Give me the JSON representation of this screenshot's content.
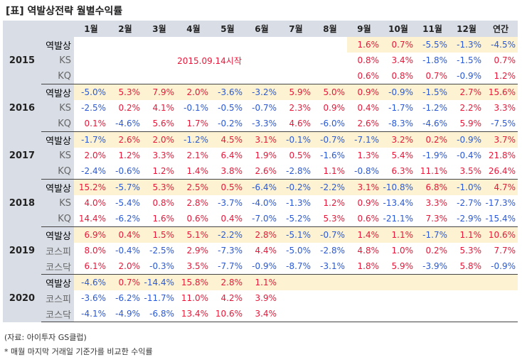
{
  "title": "[표] 역발상전략 월별수익률",
  "months": [
    "1월",
    "2월",
    "3월",
    "4월",
    "5월",
    "6월",
    "7월",
    "8월",
    "9월",
    "10월",
    "11월",
    "12월",
    "연간"
  ],
  "years": [
    {
      "year": "2015",
      "note": "2015.09.14시작",
      "rows": [
        {
          "label": "역발상",
          "values": [
            "",
            "",
            "",
            "",
            "",
            "",
            "",
            "",
            "1.6%",
            "0.7%",
            "-5.5%",
            "-1.3%",
            "-4.5%"
          ]
        },
        {
          "label": "KS",
          "values": [
            "",
            "",
            "",
            "",
            "",
            "",
            "",
            "",
            "0.8%",
            "3.4%",
            "-1.8%",
            "-1.5%",
            "0.7%"
          ]
        },
        {
          "label": "KQ",
          "values": [
            "",
            "",
            "",
            "",
            "",
            "",
            "",
            "",
            "0.6%",
            "0.8%",
            "0.7%",
            "-0.9%",
            "1.2%"
          ]
        }
      ]
    },
    {
      "year": "2016",
      "rows": [
        {
          "label": "역발상",
          "values": [
            "-5.0%",
            "5.3%",
            "7.9%",
            "2.0%",
            "-3.6%",
            "-3.2%",
            "5.9%",
            "5.0%",
            "0.9%",
            "-0.9%",
            "-1.5%",
            "2.7%",
            "15.6%"
          ]
        },
        {
          "label": "KS",
          "values": [
            "-2.5%",
            "0.2%",
            "4.1%",
            "-0.1%",
            "-0.5%",
            "-0.7%",
            "2.3%",
            "0.9%",
            "0.4%",
            "-1.7%",
            "-1.2%",
            "2.2%",
            "3.3%"
          ]
        },
        {
          "label": "KQ",
          "values": [
            "0.1%",
            "-4.6%",
            "5.6%",
            "1.7%",
            "-0.2%",
            "-3.3%",
            "4.6%",
            "-6.0%",
            "2.6%",
            "-8.3%",
            "-4.6%",
            "5.9%",
            "-7.5%"
          ]
        }
      ]
    },
    {
      "year": "2017",
      "rows": [
        {
          "label": "역발상",
          "values": [
            "-1.7%",
            "2.6%",
            "2.0%",
            "-1.2%",
            "4.5%",
            "3.1%",
            "-0.1%",
            "-0.7%",
            "-7.1%",
            "3.2%",
            "0.2%",
            "-0.9%",
            "3.7%"
          ]
        },
        {
          "label": "KS",
          "values": [
            "2.0%",
            "1.2%",
            "3.3%",
            "2.1%",
            "6.4%",
            "1.9%",
            "0.5%",
            "-1.6%",
            "1.3%",
            "5.4%",
            "-1.9%",
            "-0.4%",
            "21.8%"
          ]
        },
        {
          "label": "KQ",
          "values": [
            "-2.4%",
            "-0.6%",
            "1.2%",
            "1.4%",
            "3.8%",
            "2.6%",
            "-2.8%",
            "1.1%",
            "-0.8%",
            "6.3%",
            "11.1%",
            "3.5%",
            "26.4%"
          ]
        }
      ]
    },
    {
      "year": "2018",
      "rows": [
        {
          "label": "역발상",
          "values": [
            "15.2%",
            "-5.7%",
            "5.3%",
            "2.5%",
            "0.5%",
            "-6.4%",
            "-0.2%",
            "-2.2%",
            "3.1%",
            "-10.8%",
            "6.8%",
            "-1.0%",
            "4.7%"
          ]
        },
        {
          "label": "KS",
          "values": [
            "4.0%",
            "-5.4%",
            "0.8%",
            "2.8%",
            "-3.7%",
            "-4.0%",
            "-1.3%",
            "1.2%",
            "0.9%",
            "-13.4%",
            "3.3%",
            "-2.7%",
            "-17.3%"
          ]
        },
        {
          "label": "KQ",
          "values": [
            "14.4%",
            "-6.2%",
            "1.6%",
            "0.6%",
            "0.4%",
            "-7.0%",
            "-5.2%",
            "5.3%",
            "0.6%",
            "-21.1%",
            "7.3%",
            "-2.9%",
            "-15.4%"
          ]
        }
      ]
    },
    {
      "year": "2019",
      "rows": [
        {
          "label": "역발상",
          "values": [
            "6.9%",
            "0.4%",
            "1.5%",
            "5.1%",
            "-2.2%",
            "2.8%",
            "-5.1%",
            "-0.7%",
            "1.4%",
            "1.1%",
            "-1.7%",
            "1.1%",
            "10.6%"
          ]
        },
        {
          "label": "코스피",
          "values": [
            "8.0%",
            "-0.4%",
            "-2.5%",
            "2.9%",
            "-7.3%",
            "4.4%",
            "-5.0%",
            "-2.8%",
            "4.8%",
            "1.0%",
            "0.2%",
            "5.3%",
            "7.7%"
          ]
        },
        {
          "label": "코스닥",
          "values": [
            "6.1%",
            "2.0%",
            "-0.3%",
            "3.5%",
            "-7.7%",
            "-0.9%",
            "-8.7%",
            "-3.1%",
            "1.8%",
            "5.9%",
            "-3.9%",
            "5.8%",
            "-0.9%"
          ]
        }
      ]
    },
    {
      "year": "2020",
      "rows": [
        {
          "label": "역발상",
          "values": [
            "-4.6%",
            "0.7%",
            "-14.4%",
            "15.8%",
            "2.8%",
            "1.1%",
            "",
            "",
            "",
            "",
            "",
            "",
            ""
          ]
        },
        {
          "label": "코스피",
          "values": [
            "-3.6%",
            "-6.2%",
            "-11.7%",
            "11.0%",
            "4.2%",
            "3.9%",
            "",
            "",
            "",
            "",
            "",
            "",
            ""
          ]
        },
        {
          "label": "코스닥",
          "values": [
            "-4.1%",
            "-4.9%",
            "-6.8%",
            "13.4%",
            "10.6%",
            "3.4%",
            "",
            "",
            "",
            "",
            "",
            "",
            ""
          ]
        }
      ]
    }
  ],
  "source": "(자료: 아이투자 GS클럽)",
  "footnote": "* 매월 마지막 거래일 기준가를 비교한 수익률",
  "colors": {
    "header_bg": "#d9dde5",
    "highlight_row": "#fdf3d3",
    "positive": "#e8183a",
    "negative": "#2a5ad8"
  }
}
